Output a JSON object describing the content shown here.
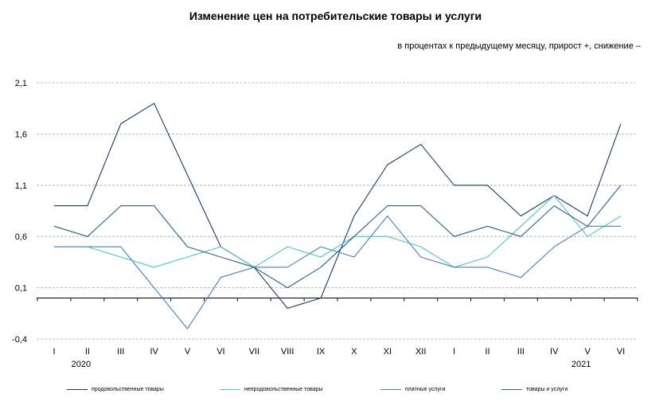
{
  "chart_data": {
    "type": "line",
    "title": "Изменение цен на потребительские товары и услуги",
    "subtitle": "в процентах к предыдущему месяцу, прирост +, снижение –",
    "xlabel": "",
    "ylabel": "",
    "ylim": [
      -0.4,
      2.1
    ],
    "yticks": [
      "2,1",
      "1,6",
      "1,1",
      "0,6",
      "0,1",
      "-0,4"
    ],
    "ytick_values": [
      2.1,
      1.6,
      1.1,
      0.6,
      0.1,
      -0.4
    ],
    "grid": true,
    "legend_position": "bottom",
    "categories": [
      "I",
      "II",
      "III",
      "IV",
      "V",
      "VI",
      "VII",
      "VIII",
      "IX",
      "X",
      "XI",
      "XII",
      "I",
      "II",
      "III",
      "IV",
      "V",
      "VI"
    ],
    "year_labels": [
      {
        "label": "2020",
        "category_index": 1
      },
      {
        "label": "2021",
        "category_index": 16
      }
    ],
    "series": [
      {
        "name": "продовольственные товары",
        "color": "#1f3864",
        "values": [
          0.9,
          0.9,
          1.7,
          1.9,
          1.2,
          0.5,
          0.3,
          -0.1,
          0.0,
          0.8,
          1.3,
          1.5,
          1.1,
          1.1,
          0.8,
          1.0,
          0.8,
          1.7
        ]
      },
      {
        "name": "непродовольственные товары",
        "color": "#4fc3c8",
        "values": [
          0.5,
          0.5,
          0.4,
          0.3,
          0.4,
          0.5,
          0.3,
          0.5,
          0.4,
          0.6,
          0.6,
          0.5,
          0.3,
          0.4,
          0.7,
          1.0,
          0.6,
          0.8
        ]
      },
      {
        "name": "платные услуги",
        "color": "#4a7ebb",
        "values": [
          0.5,
          0.5,
          0.5,
          0.1,
          -0.3,
          0.2,
          0.3,
          0.3,
          0.5,
          0.4,
          0.8,
          0.4,
          0.3,
          0.3,
          0.2,
          0.5,
          0.7,
          0.7
        ]
      },
      {
        "name": "товары и услуги",
        "color": "#2e5f8a",
        "values": [
          0.7,
          0.6,
          0.9,
          0.9,
          0.5,
          0.4,
          0.3,
          0.1,
          0.3,
          0.6,
          0.9,
          0.9,
          0.6,
          0.7,
          0.6,
          0.9,
          0.7,
          1.1
        ]
      }
    ]
  }
}
